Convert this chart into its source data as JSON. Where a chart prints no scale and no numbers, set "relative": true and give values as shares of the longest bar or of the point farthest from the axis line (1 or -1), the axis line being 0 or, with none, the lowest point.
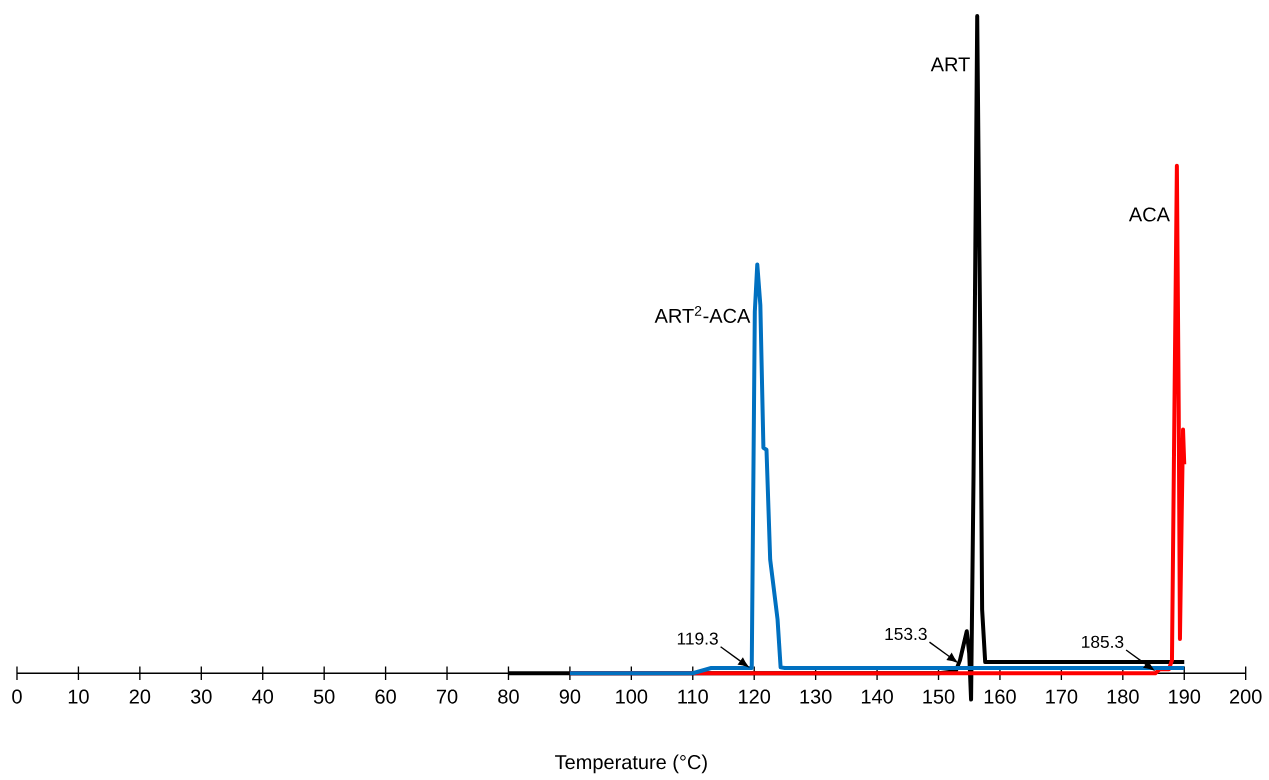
{
  "chart_data": {
    "type": "line",
    "relative": true,
    "xlabel": "Temperature (°C)",
    "xlim": [
      0,
      200
    ],
    "xticks": [
      0,
      10,
      20,
      30,
      40,
      50,
      60,
      70,
      80,
      90,
      100,
      110,
      120,
      130,
      140,
      150,
      160,
      170,
      180,
      190,
      200
    ],
    "grid": false,
    "legend": false,
    "marker": "none",
    "line_style": "solid",
    "series": [
      {
        "name": "ART",
        "color": "#000000",
        "x": [
          80,
          90,
          100,
          110,
          120,
          130,
          140,
          150,
          152.8,
          153.5,
          154.0,
          154.6,
          155.0,
          155.3,
          155.7,
          156.3,
          156.8,
          157.1,
          157.6,
          158.0,
          170,
          190
        ],
        "values": [
          0,
          0,
          0,
          0,
          0,
          0,
          0,
          0,
          0.003,
          0.02,
          0.04,
          0.064,
          0.03,
          -0.04,
          0.3,
          1,
          0.5,
          0.097,
          0.017,
          0.017,
          0.017,
          0.017
        ]
      },
      {
        "name": "ACA",
        "color": "#ff0000",
        "x": [
          90,
          100,
          120,
          140,
          160,
          180,
          185.3,
          186.0,
          187.5,
          188.0,
          188.4,
          188.8,
          189.1,
          189.3,
          189.6,
          189.8,
          190.0
        ],
        "values": [
          0,
          0,
          0,
          0,
          0,
          0,
          0,
          0.006,
          0.006,
          0.02,
          0.4,
          0.772,
          0.4,
          0.052,
          0.25,
          0.371,
          0.318
        ]
      },
      {
        "name": "ART$^{2}$-ACA",
        "color": "#0070c0",
        "x": [
          90,
          100,
          110,
          113,
          119.3,
          119.6,
          120.1,
          120.5,
          121.0,
          121.5,
          122.0,
          122.6,
          123.2,
          123.8,
          124.3,
          125,
          150,
          170,
          190
        ],
        "values": [
          0,
          0,
          0,
          0.008,
          0.008,
          0.008,
          0.55,
          0.622,
          0.56,
          0.343,
          0.34,
          0.173,
          0.128,
          0.082,
          0.009,
          0.008,
          0.008,
          0.008,
          0.008
        ]
      }
    ],
    "annotations": [
      {
        "text": "119.3",
        "x": 119.3,
        "y": 0.008
      },
      {
        "text": "153.3",
        "x": 153.3,
        "y": 0.015
      },
      {
        "text": "185.3",
        "x": 185.3,
        "y": 0.003
      }
    ]
  }
}
